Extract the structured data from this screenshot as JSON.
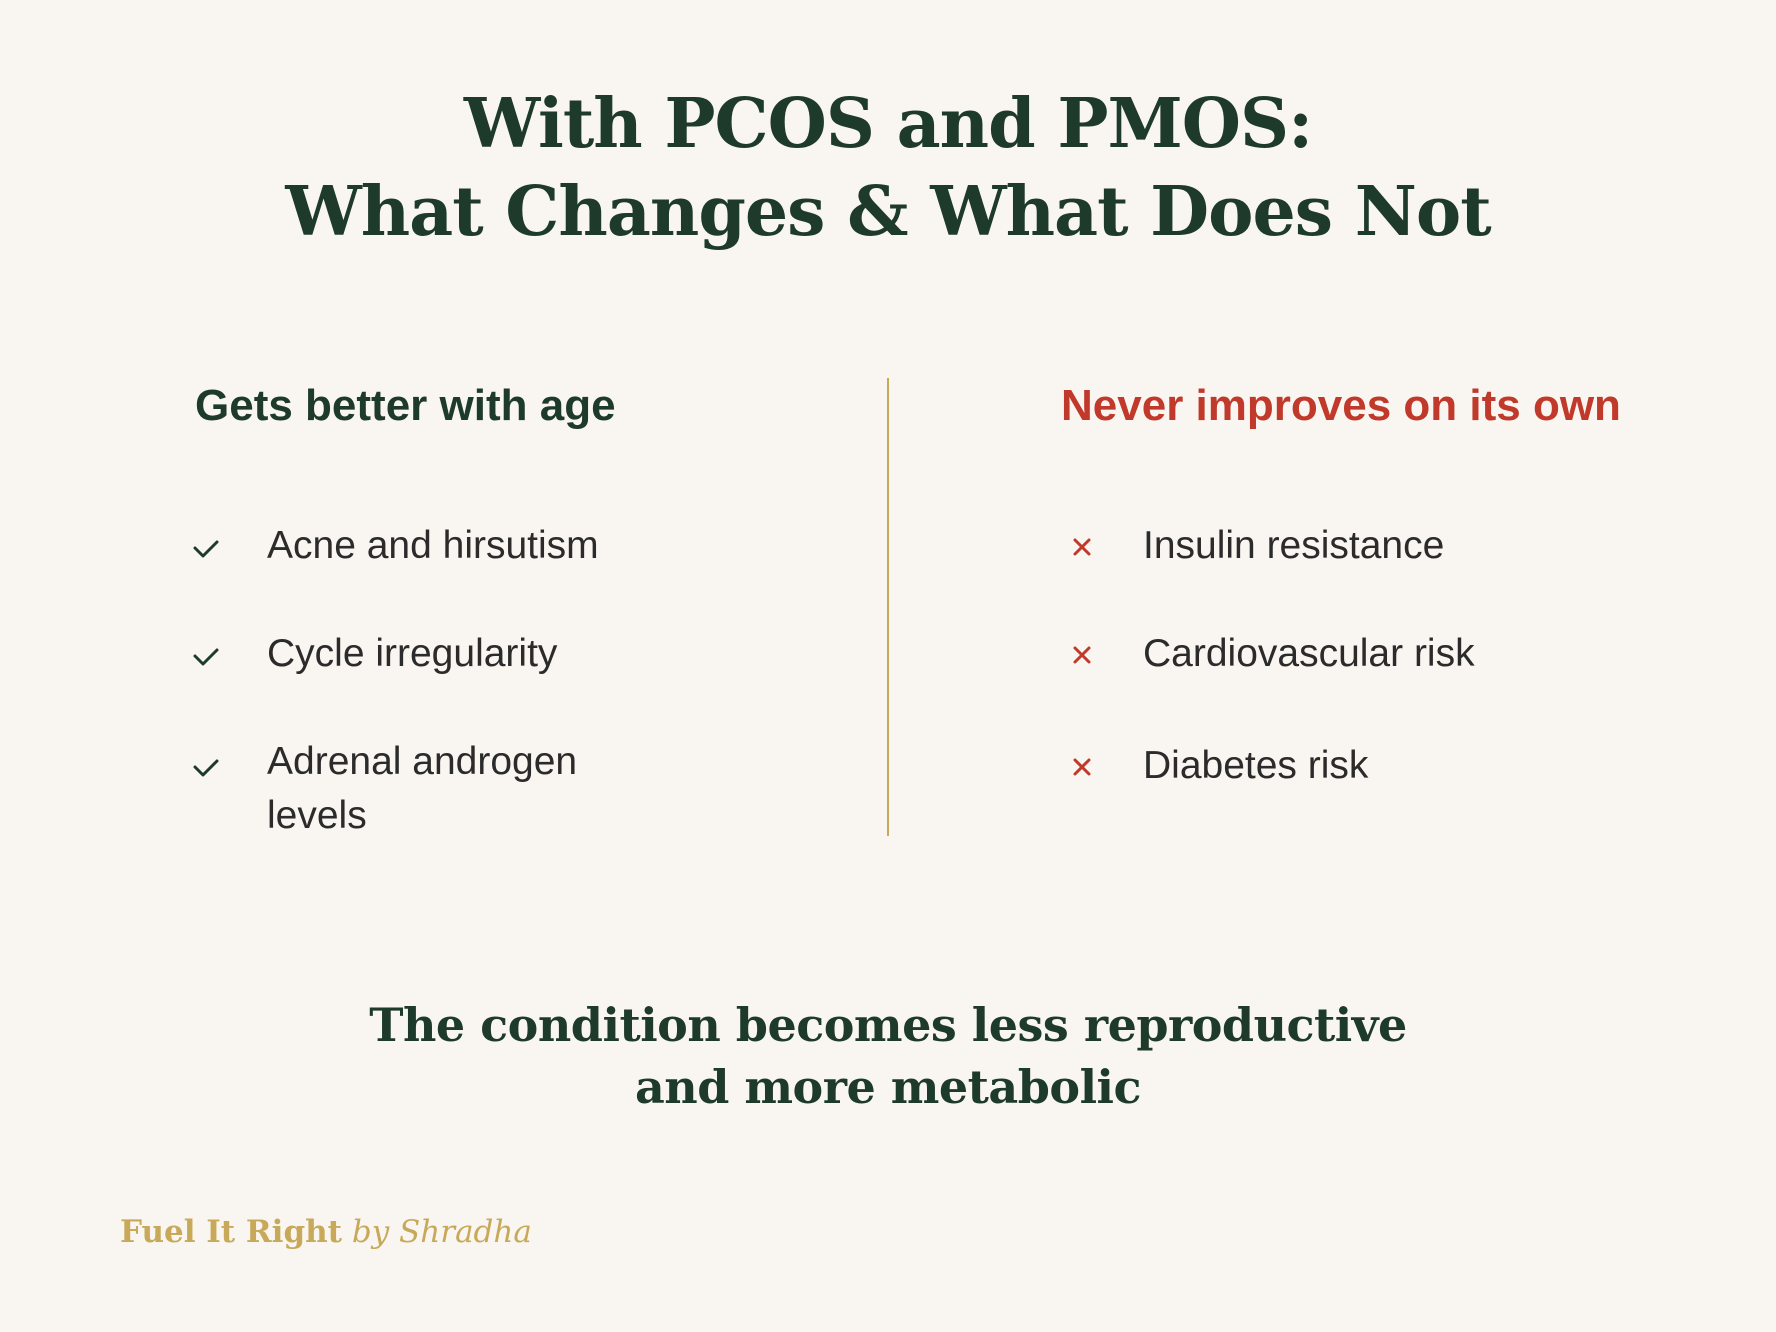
{
  "title": {
    "line1": "With PCOS and PMOS:",
    "line2": "What Changes & What Does Not"
  },
  "left_column": {
    "heading": "Gets better with age",
    "marker_icon": "check-icon",
    "marker_color": "#1e3a2a",
    "heading_color": "#1e3a2a",
    "items": [
      {
        "line1": "Acne and hirsutism"
      },
      {
        "line1": "Cycle irregularity"
      },
      {
        "line1": "Adrenal androgen",
        "line2": "levels"
      }
    ]
  },
  "right_column": {
    "heading": "Never improves on its own",
    "marker_icon": "cross-icon",
    "marker_color": "#c0392b",
    "heading_color": "#c0392b",
    "items": [
      {
        "line1": "Insulin resistance"
      },
      {
        "line1": "Cardiovascular risk"
      },
      {
        "line1": "Diabetes risk"
      }
    ]
  },
  "conclusion": {
    "line1": "The condition becomes less reproductive",
    "line2": "and more metabolic"
  },
  "brand": {
    "name": "Fuel It Right",
    "byline": "by Shradha",
    "color": "#c8a95a"
  },
  "colors": {
    "background": "#f9f6f1",
    "primary": "#1e3a2a",
    "accent_red": "#c0392b",
    "divider": "#c8a95a"
  }
}
